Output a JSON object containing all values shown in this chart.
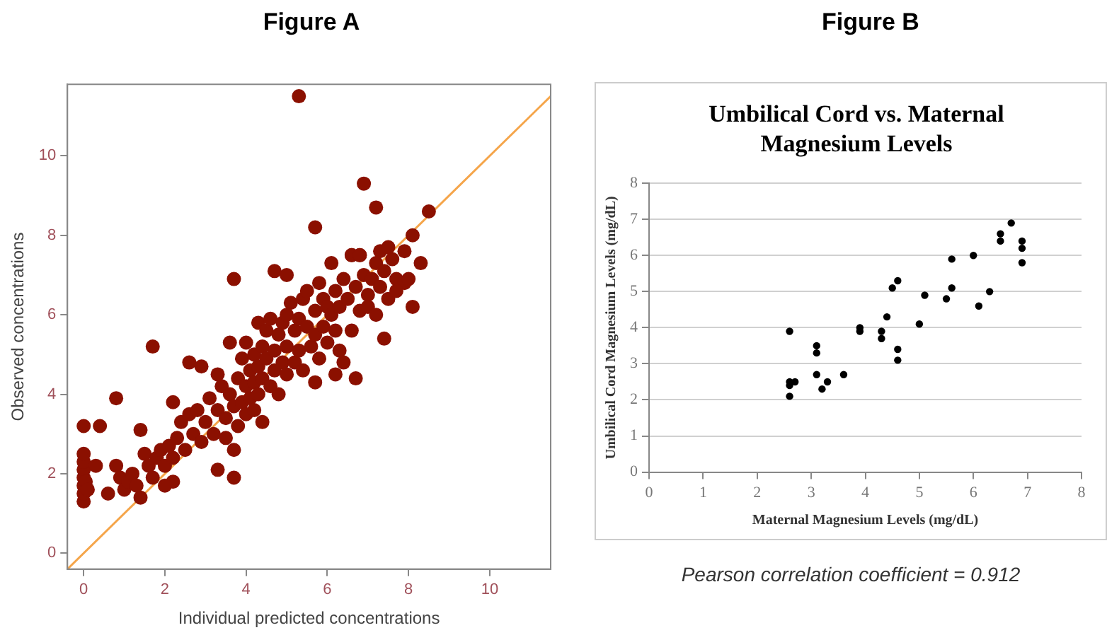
{
  "chart_data": [
    {
      "type": "scatter",
      "title": "Figure A",
      "xlabel": "Individual predicted concentrations",
      "ylabel": "Observed concentrations",
      "xlim": [
        -0.4,
        11.5
      ],
      "ylim": [
        -0.4,
        11.8
      ],
      "xticks": [
        0,
        2,
        4,
        6,
        8,
        10
      ],
      "yticks": [
        0,
        2,
        4,
        6,
        8,
        10
      ],
      "grid": false,
      "series": [
        {
          "color": "#8b1000",
          "marker": "circle",
          "x": [
            5.3,
            6.9,
            7.2,
            8.5,
            5.7,
            8.1,
            8.3,
            8.1,
            7.4,
            3.7,
            1.7,
            0.8,
            0,
            0.4,
            1.4,
            3.3,
            3.7,
            0.6,
            1.4,
            2.2,
            4.7,
            5,
            6.7,
            6.2,
            5.7,
            6.6,
            6.8,
            0,
            0,
            0,
            0,
            0,
            0,
            0,
            0.05,
            0.1,
            0.3,
            0.8,
            0.9,
            1,
            1.1,
            1.2,
            1.3,
            1.5,
            1.6,
            1.7,
            1.8,
            1.9,
            2,
            2,
            2.1,
            2.2,
            2.2,
            2.3,
            2.4,
            2.5,
            2.6,
            2.6,
            2.7,
            2.8,
            2.9,
            2.9,
            3,
            3.1,
            3.2,
            3.3,
            3.3,
            3.4,
            3.5,
            3.5,
            3.6,
            3.6,
            3.7,
            3.7,
            3.8,
            3.8,
            3.9,
            3.9,
            4,
            4,
            4,
            4.1,
            4.1,
            4.2,
            4.2,
            4.2,
            4.3,
            4.3,
            4.3,
            4.4,
            4.4,
            4.4,
            4.5,
            4.5,
            4.6,
            4.6,
            4.7,
            4.7,
            4.8,
            4.8,
            4.9,
            4.9,
            5,
            5,
            5,
            5.1,
            5.2,
            5.2,
            5.3,
            5.3,
            5.4,
            5.4,
            5.5,
            5.5,
            5.6,
            5.7,
            5.7,
            5.8,
            5.8,
            5.9,
            5.9,
            6,
            6,
            6.1,
            6.1,
            6.2,
            6.2,
            6.3,
            6.3,
            6.4,
            6.4,
            6.5,
            6.6,
            6.6,
            6.7,
            6.8,
            6.8,
            6.9,
            7,
            7,
            7.1,
            7.2,
            7.2,
            7.3,
            7.3,
            7.4,
            7.5,
            7.5,
            7.6,
            7.7,
            7.9,
            7.9,
            8,
            7.7
          ],
          "values": [
            11.5,
            9.3,
            8.7,
            8.6,
            8.2,
            8,
            7.3,
            6.2,
            5.4,
            6.9,
            5.2,
            3.9,
            3.2,
            3.2,
            3.1,
            2.1,
            1.9,
            1.5,
            1.4,
            1.8,
            7.1,
            7,
            4.4,
            4.5,
            4.3,
            7.5,
            7.5,
            1.3,
            1.5,
            1.7,
            1.9,
            2.1,
            2.3,
            2.5,
            1.8,
            1.6,
            2.2,
            2.2,
            1.9,
            1.6,
            1.8,
            2,
            1.7,
            2.5,
            2.2,
            1.9,
            2.4,
            2.6,
            2.2,
            1.7,
            2.7,
            3.8,
            2.4,
            2.9,
            3.3,
            2.6,
            3.5,
            4.8,
            3,
            3.6,
            4.7,
            2.8,
            3.3,
            3.9,
            3,
            3.6,
            4.5,
            4.2,
            3.4,
            2.9,
            4,
            5.3,
            3.7,
            2.6,
            4.4,
            3.2,
            4.9,
            3.8,
            4.2,
            3.5,
            5.3,
            4.6,
            3.9,
            5,
            4.3,
            3.6,
            5.8,
            4.7,
            4,
            5.2,
            3.3,
            4.4,
            4.9,
            5.6,
            4.2,
            5.9,
            5.1,
            4.6,
            5.5,
            4,
            5.8,
            4.8,
            6,
            5.2,
            4.5,
            6.3,
            5.6,
            4.8,
            5.9,
            5.1,
            6.4,
            4.6,
            5.7,
            6.6,
            5.2,
            6.1,
            5.5,
            6.8,
            4.9,
            6.4,
            5.7,
            6.2,
            5.3,
            7.3,
            6,
            5.6,
            6.6,
            6.2,
            5.1,
            6.9,
            4.8,
            6.4,
            5.6,
            7.5,
            6.7,
            6.1,
            7.5,
            7,
            6.5,
            6.2,
            6.9,
            7.3,
            6,
            7.6,
            6.7,
            7.1,
            7.7,
            6.4,
            7.4,
            6.9,
            7.6,
            6.8,
            6.9,
            6.6
          ]
        },
        {
          "type": "line",
          "color": "#f5a54a",
          "line_style": "solid",
          "x": [
            -0.4,
            11.5
          ],
          "values": [
            -0.4,
            11.5
          ]
        }
      ]
    },
    {
      "type": "scatter",
      "title": "Figure B",
      "subtitle": "Umbilical Cord vs. Maternal Magnesium Levels",
      "xlabel": "Maternal Magnesium Levels (mg/dL)",
      "ylabel": "Umbilical Cord Magnesium Levels (mg/dL)",
      "xlim": [
        0,
        8
      ],
      "ylim": [
        0,
        8
      ],
      "xticks": [
        0,
        1,
        2,
        3,
        4,
        5,
        6,
        7,
        8
      ],
      "yticks": [
        0,
        1,
        2,
        3,
        4,
        5,
        6,
        7,
        8
      ],
      "grid": "y",
      "marker": "circle",
      "annotations": [
        "Pearson correlation coefficient = 0.912"
      ],
      "series": [
        {
          "color": "#000000",
          "x": [
            2.6,
            2.6,
            2.6,
            2.6,
            2.7,
            3.1,
            3.1,
            3.1,
            3.2,
            3.3,
            3.6,
            3.9,
            3.9,
            4.3,
            4.3,
            4.4,
            4.5,
            4.6,
            4.6,
            4.6,
            5,
            5.1,
            5.5,
            5.6,
            5.6,
            6,
            6.1,
            6.3,
            6.5,
            6.5,
            6.7,
            6.9,
            6.9,
            6.9
          ],
          "values": [
            3.9,
            2.5,
            2.4,
            2.1,
            2.5,
            3.5,
            3.3,
            2.7,
            2.3,
            2.5,
            2.7,
            4,
            3.9,
            3.9,
            3.7,
            4.3,
            5.1,
            5.3,
            3.4,
            3.1,
            4.1,
            4.9,
            4.8,
            5.9,
            5.1,
            6,
            4.6,
            5,
            6.6,
            6.4,
            6.9,
            6.4,
            6.2,
            5.8
          ]
        }
      ]
    }
  ]
}
